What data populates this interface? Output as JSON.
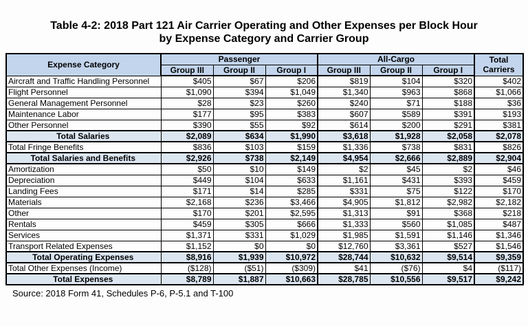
{
  "page": {
    "title_line1": "Table 4-2: 2018 Part 121 Air Carrier Operating and Other Expenses per Block Hour",
    "title_line2": "by Expense Category and Carrier Group",
    "source": "Source: 2018 Form 41, Schedules P-6, P-5.1 and T-100"
  },
  "colors": {
    "header_bg": "#c3d5ec",
    "total_row_bg": "#dce6f1",
    "border": "#000000",
    "text": "#000000",
    "page_bg": "#fdfdfd"
  },
  "table": {
    "corner_header": "Expense Category",
    "group_headers": [
      {
        "label": "Passenger",
        "subcols": [
          "Group III",
          "Group II",
          "Group I"
        ]
      },
      {
        "label": "All-Cargo",
        "subcols": [
          "Group III",
          "Group II",
          "Group I"
        ]
      }
    ],
    "total_col_header_line1": "Total",
    "total_col_header_line2": "Carriers",
    "rows": [
      {
        "label": "Aircraft and Traffic Handling Personnel",
        "type": "data",
        "values": [
          "$405",
          "$67",
          "$206",
          "$819",
          "$104",
          "$320",
          "$402"
        ]
      },
      {
        "label": "Flight Personnel",
        "type": "data",
        "values": [
          "$1,090",
          "$394",
          "$1,049",
          "$1,340",
          "$963",
          "$868",
          "$1,066"
        ]
      },
      {
        "label": "General Management Personnel",
        "type": "data",
        "values": [
          "$28",
          "$23",
          "$260",
          "$240",
          "$71",
          "$188",
          "$36"
        ]
      },
      {
        "label": "Maintenance Labor",
        "type": "data",
        "values": [
          "$177",
          "$95",
          "$383",
          "$607",
          "$589",
          "$391",
          "$193"
        ]
      },
      {
        "label": "Other Personnel",
        "type": "data",
        "values": [
          "$390",
          "$55",
          "$92",
          "$614",
          "$200",
          "$291",
          "$381"
        ]
      },
      {
        "label": "Total Salaries",
        "type": "total",
        "values": [
          "$2,089",
          "$634",
          "$1,990",
          "$3,618",
          "$1,928",
          "$2,058",
          "$2,078"
        ]
      },
      {
        "label": "Total Fringe Benefits",
        "type": "data",
        "values": [
          "$836",
          "$103",
          "$159",
          "$1,336",
          "$738",
          "$831",
          "$826"
        ]
      },
      {
        "label": "Total Salaries and Benefits",
        "type": "total",
        "values": [
          "$2,926",
          "$738",
          "$2,149",
          "$4,954",
          "$2,666",
          "$2,889",
          "$2,904"
        ]
      },
      {
        "label": "Amortization",
        "type": "data",
        "values": [
          "$50",
          "$10",
          "$149",
          "$2",
          "$45",
          "$2",
          "$46"
        ]
      },
      {
        "label": "Depreciation",
        "type": "data",
        "values": [
          "$449",
          "$104",
          "$633",
          "$1,161",
          "$431",
          "$393",
          "$459"
        ]
      },
      {
        "label": "Landing Fees",
        "type": "data",
        "values": [
          "$171",
          "$14",
          "$285",
          "$331",
          "$75",
          "$122",
          "$170"
        ]
      },
      {
        "label": "Materials",
        "type": "data",
        "values": [
          "$2,168",
          "$236",
          "$3,466",
          "$4,905",
          "$1,812",
          "$2,982",
          "$2,182"
        ]
      },
      {
        "label": "Other",
        "type": "data",
        "values": [
          "$170",
          "$201",
          "$2,595",
          "$1,313",
          "$91",
          "$368",
          "$218"
        ]
      },
      {
        "label": "Rentals",
        "type": "data",
        "values": [
          "$459",
          "$305",
          "$666",
          "$1,333",
          "$560",
          "$1,085",
          "$487"
        ]
      },
      {
        "label": "Services",
        "type": "data",
        "values": [
          "$1,371",
          "$331",
          "$1,029",
          "$1,985",
          "$1,591",
          "$1,146",
          "$1,346"
        ]
      },
      {
        "label": "Transport Related Expenses",
        "type": "data",
        "values": [
          "$1,152",
          "$0",
          "$0",
          "$12,760",
          "$3,361",
          "$527",
          "$1,546"
        ]
      },
      {
        "label": "Total Operating Expenses",
        "type": "total",
        "values": [
          "$8,916",
          "$1,939",
          "$10,972",
          "$28,744",
          "$10,632",
          "$9,514",
          "$9,359"
        ]
      },
      {
        "label": "Total Other Expenses (Income)",
        "type": "data",
        "values": [
          "($128)",
          "($51)",
          "($309)",
          "$41",
          "($76)",
          "$4",
          "($117)"
        ]
      },
      {
        "label": "Total Expenses",
        "type": "total",
        "values": [
          "$8,789",
          "$1,887",
          "$10,663",
          "$28,785",
          "$10,556",
          "$9,517",
          "$9,242"
        ]
      }
    ]
  }
}
